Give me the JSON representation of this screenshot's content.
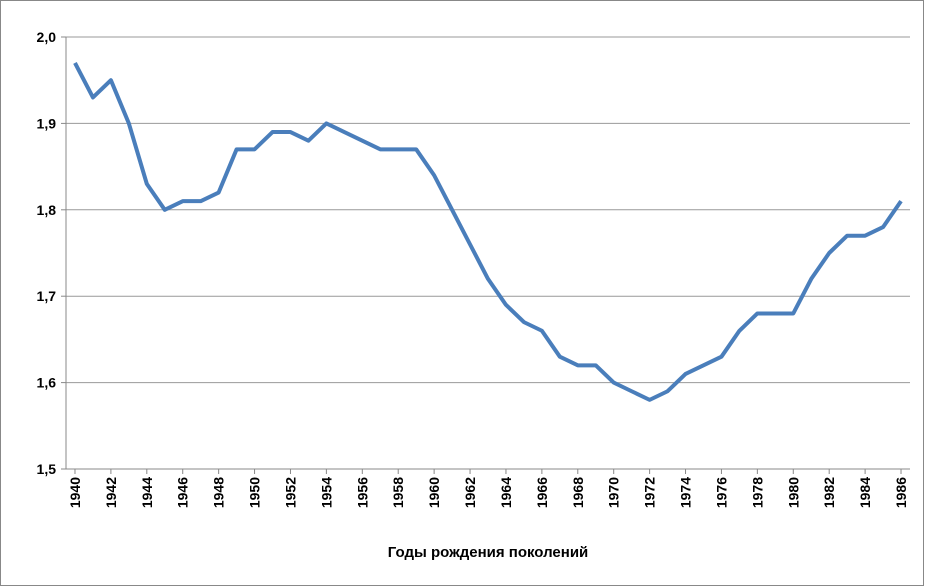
{
  "chart_data": {
    "type": "line",
    "x_label": "Годы рождения поколений",
    "x": [
      1940,
      1941,
      1942,
      1943,
      1944,
      1945,
      1946,
      1947,
      1948,
      1949,
      1950,
      1951,
      1952,
      1953,
      1954,
      1955,
      1956,
      1957,
      1958,
      1959,
      1960,
      1961,
      1962,
      1963,
      1964,
      1965,
      1966,
      1967,
      1968,
      1969,
      1970,
      1971,
      1972,
      1973,
      1974,
      1975,
      1976,
      1977,
      1978,
      1979,
      1980,
      1981,
      1982,
      1983,
      1984,
      1985,
      1986
    ],
    "series": [
      {
        "color": "#4a7ebb",
        "values": [
          1.97,
          1.93,
          1.95,
          1.9,
          1.83,
          1.8,
          1.81,
          1.81,
          1.82,
          1.87,
          1.87,
          1.89,
          1.89,
          1.88,
          1.9,
          1.89,
          1.88,
          1.87,
          1.87,
          1.87,
          1.84,
          1.8,
          1.76,
          1.72,
          1.69,
          1.67,
          1.66,
          1.63,
          1.62,
          1.62,
          1.6,
          1.59,
          1.58,
          1.59,
          1.61,
          1.62,
          1.63,
          1.66,
          1.68,
          1.68,
          1.68,
          1.72,
          1.75,
          1.77,
          1.77,
          1.78,
          1.81
        ]
      }
    ],
    "xlim": [
      1939.5,
      1986.5
    ],
    "xticks": [
      1940,
      1942,
      1944,
      1946,
      1948,
      1950,
      1952,
      1954,
      1956,
      1958,
      1960,
      1962,
      1964,
      1966,
      1968,
      1970,
      1972,
      1974,
      1976,
      1978,
      1980,
      1982,
      1984,
      1986
    ],
    "ylim": [
      1.5,
      2.0
    ],
    "yticks": [
      {
        "value": 1.5,
        "label": "1,5"
      },
      {
        "value": 1.6,
        "label": "1,6"
      },
      {
        "value": 1.7,
        "label": "1,7"
      },
      {
        "value": 1.8,
        "label": "1,8"
      },
      {
        "value": 1.9,
        "label": "1,9"
      },
      {
        "value": 2.0,
        "label": "2,0"
      }
    ],
    "grid": true
  }
}
